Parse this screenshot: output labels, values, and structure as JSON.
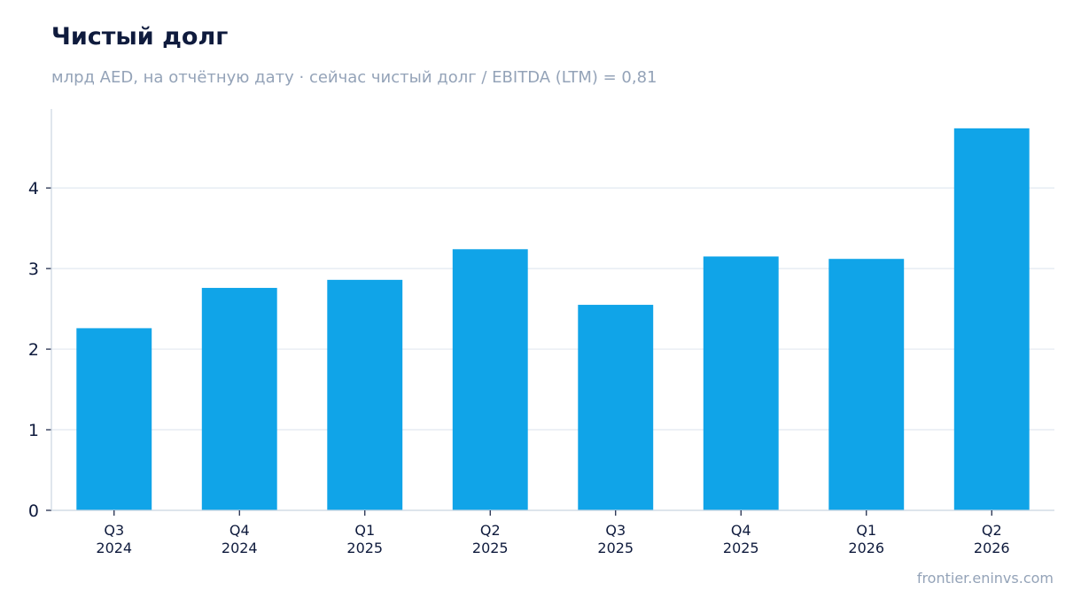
{
  "title": "Чистый долг",
  "subtitle": "млрд AED, на отчётную дату · сейчас чистый долг / EBITDA (LTM) = 0,81",
  "footer": "frontier.eninvs.com",
  "colors": {
    "bar": "#10a4e8",
    "grid": "#e2e8f0",
    "axis": "#cbd5e1",
    "title": "#0f1b3d",
    "muted": "#94a3b8"
  },
  "chart_data": {
    "type": "bar",
    "title": "Чистый долг",
    "subtitle": "млрд AED, на отчётную дату · сейчас чистый долг / EBITDA (LTM) = 0,81",
    "categories": [
      [
        "Q3",
        "2024"
      ],
      [
        "Q4",
        "2024"
      ],
      [
        "Q1",
        "2025"
      ],
      [
        "Q2",
        "2025"
      ],
      [
        "Q3",
        "2025"
      ],
      [
        "Q4",
        "2025"
      ],
      [
        "Q1",
        "2026"
      ],
      [
        "Q2",
        "2026"
      ]
    ],
    "values": [
      2.26,
      2.76,
      2.86,
      3.24,
      2.55,
      3.15,
      3.12,
      4.74
    ],
    "ylim": [
      0,
      4.98
    ],
    "yticks": [
      0,
      1,
      2,
      3,
      4
    ],
    "grid": true,
    "legend": "none"
  }
}
